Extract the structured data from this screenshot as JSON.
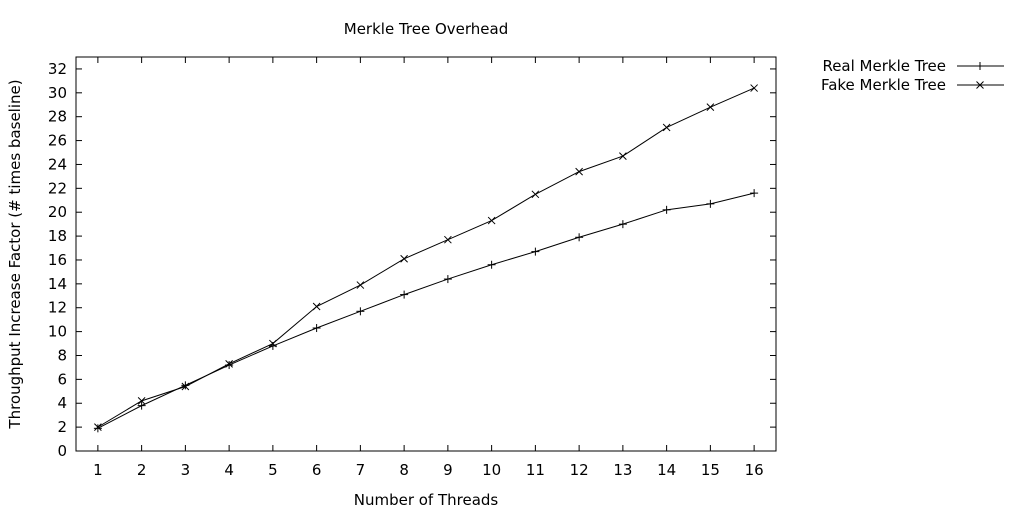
{
  "chart_data": {
    "type": "line",
    "title": "Merkle Tree Overhead",
    "xlabel": "Number of Threads",
    "ylabel": "Throughput Increase Factor (# times baseline)",
    "x": [
      1,
      2,
      3,
      4,
      5,
      6,
      7,
      8,
      9,
      10,
      11,
      12,
      13,
      14,
      15,
      16
    ],
    "xlim": [
      0.5,
      16.5
    ],
    "ylim": [
      0,
      33
    ],
    "xticks": [
      "1",
      "2",
      "3",
      "4",
      "5",
      "6",
      "7",
      "8",
      "9",
      "10",
      "11",
      "12",
      "13",
      "14",
      "15",
      "16"
    ],
    "yticks": [
      "0",
      "2",
      "4",
      "6",
      "8",
      "10",
      "12",
      "14",
      "16",
      "18",
      "20",
      "22",
      "24",
      "26",
      "28",
      "30",
      "32"
    ],
    "grid": false,
    "legend_position": "outside-top-right",
    "series": [
      {
        "name": "Real Merkle Tree",
        "marker": "plus",
        "color": "#000000",
        "values": [
          1.9,
          3.8,
          5.5,
          7.2,
          8.8,
          10.3,
          11.7,
          13.1,
          14.4,
          15.6,
          16.7,
          17.9,
          19.0,
          20.2,
          20.7,
          21.6
        ]
      },
      {
        "name": "Fake Merkle Tree",
        "marker": "cross",
        "color": "#000000",
        "values": [
          2.0,
          4.2,
          5.4,
          7.3,
          9.0,
          12.1,
          13.9,
          16.1,
          17.7,
          19.3,
          21.5,
          23.4,
          24.7,
          27.1,
          28.8,
          30.4
        ]
      }
    ]
  }
}
